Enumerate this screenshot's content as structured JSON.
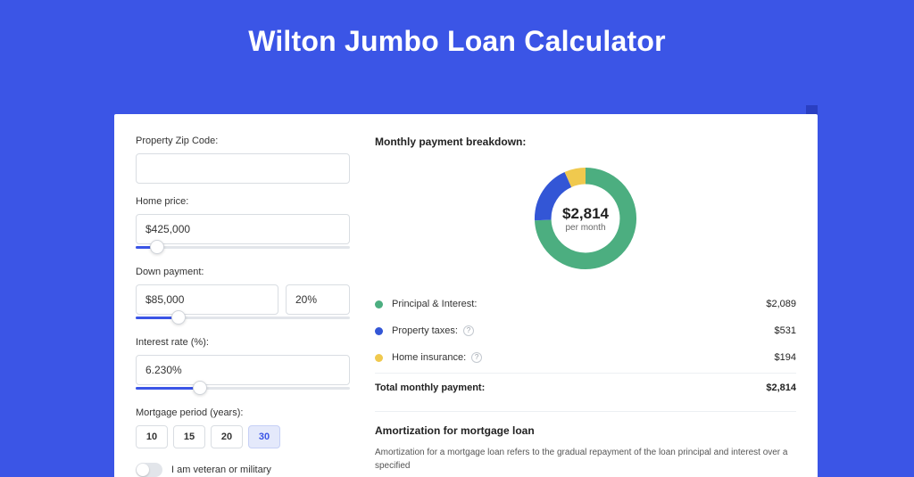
{
  "page": {
    "title": "Wilton Jumbo Loan Calculator",
    "background_color": "#3b55e6"
  },
  "form": {
    "zip": {
      "label": "Property Zip Code:",
      "value": ""
    },
    "home_price": {
      "label": "Home price:",
      "value": "$425,000",
      "slider_pct": 10
    },
    "down_payment": {
      "label": "Down payment:",
      "amount": "$85,000",
      "percent": "20%",
      "slider_pct": 20
    },
    "interest_rate": {
      "label": "Interest rate (%):",
      "value": "6.230%",
      "slider_pct": 30
    },
    "period": {
      "label": "Mortgage period (years):",
      "options": [
        "10",
        "15",
        "20",
        "30"
      ],
      "active": "30"
    },
    "veteran": {
      "label": "I am veteran or military",
      "on": false
    }
  },
  "breakdown": {
    "title": "Monthly payment breakdown:",
    "donut": {
      "amount": "$2,814",
      "subtext": "per month",
      "slices": [
        {
          "key": "principal_interest",
          "color": "#4cae80",
          "value": 2089
        },
        {
          "key": "property_taxes",
          "color": "#3356d6",
          "value": 531
        },
        {
          "key": "home_insurance",
          "color": "#f0c94e",
          "value": 194
        }
      ],
      "ring_width": 16,
      "bg": "#ffffff"
    },
    "legend": [
      {
        "label": "Principal & Interest:",
        "color": "#4cae80",
        "value": "$2,089",
        "help": false
      },
      {
        "label": "Property taxes:",
        "color": "#3356d6",
        "value": "$531",
        "help": true
      },
      {
        "label": "Home insurance:",
        "color": "#f0c94e",
        "value": "$194",
        "help": true
      }
    ],
    "total": {
      "label": "Total monthly payment:",
      "value": "$2,814"
    }
  },
  "amortization": {
    "title": "Amortization for mortgage loan",
    "text": "Amortization for a mortgage loan refers to the gradual repayment of the loan principal and interest over a specified"
  }
}
